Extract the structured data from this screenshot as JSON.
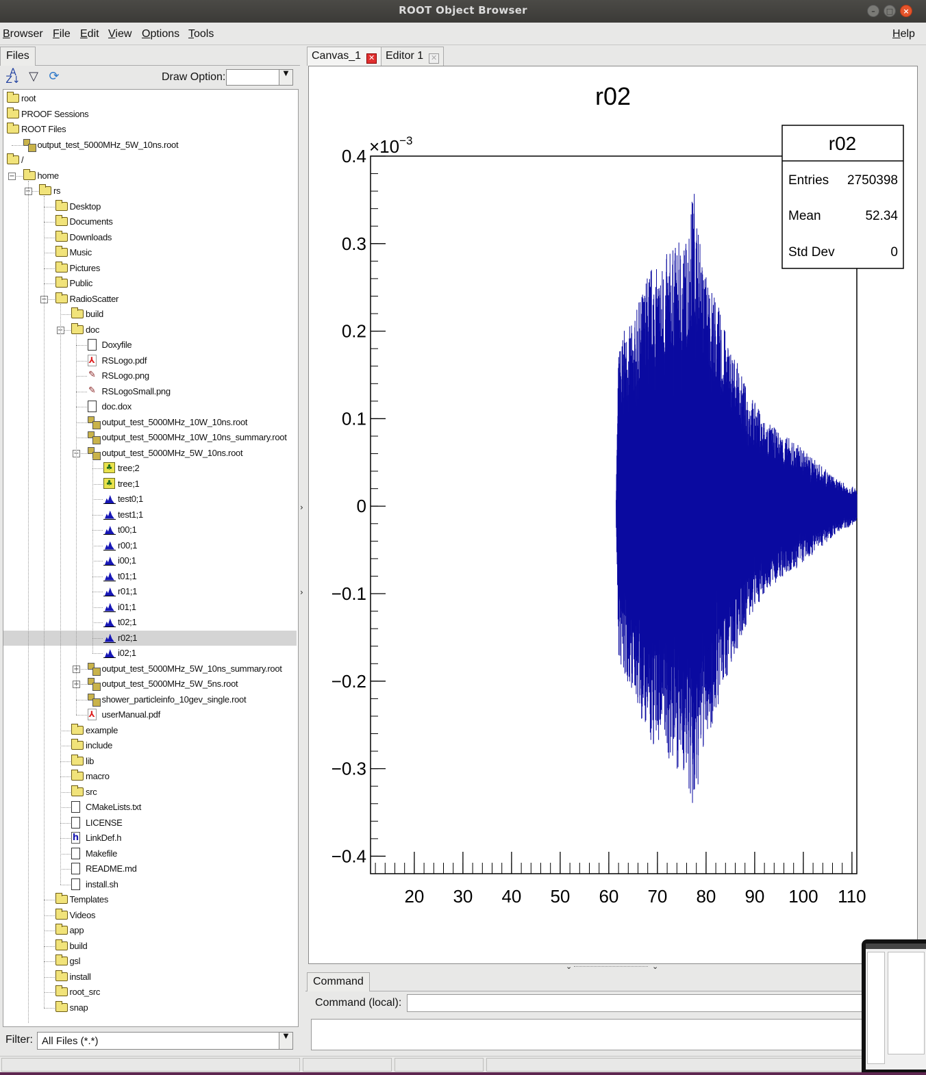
{
  "window": {
    "title": "ROOT Object Browser"
  },
  "menu": {
    "items": [
      "Browser",
      "File",
      "Edit",
      "View",
      "Options",
      "Tools"
    ],
    "help": "Help"
  },
  "left": {
    "tab": "Files",
    "draw_option_label": "Draw Option:",
    "draw_option_value": "",
    "filter_label": "Filter:",
    "filter_value": "All Files (*.*)"
  },
  "tree": [
    {
      "label": "root",
      "icon": "folder-icon",
      "depth": 0
    },
    {
      "label": "PROOF Sessions",
      "icon": "folder-icon",
      "depth": 0
    },
    {
      "label": "ROOT Files",
      "icon": "open-folder-icon",
      "depth": 0
    },
    {
      "label": "output_test_5000MHz_5W_10ns.root",
      "icon": "root-file-icon",
      "depth": 1
    },
    {
      "label": "/",
      "icon": "open-folder-icon",
      "depth": 0
    },
    {
      "label": "home",
      "icon": "open-folder-icon",
      "depth": 1,
      "exp": "−"
    },
    {
      "label": "rs",
      "icon": "open-folder-icon",
      "depth": 2,
      "exp": "−"
    },
    {
      "label": "Desktop",
      "icon": "folder-icon",
      "depth": 3
    },
    {
      "label": "Documents",
      "icon": "folder-icon",
      "depth": 3
    },
    {
      "label": "Downloads",
      "icon": "folder-icon",
      "depth": 3
    },
    {
      "label": "Music",
      "icon": "folder-icon",
      "depth": 3
    },
    {
      "label": "Pictures",
      "icon": "folder-icon",
      "depth": 3
    },
    {
      "label": "Public",
      "icon": "folder-icon",
      "depth": 3
    },
    {
      "label": "RadioScatter",
      "icon": "open-folder-icon",
      "depth": 3,
      "exp": "−"
    },
    {
      "label": "build",
      "icon": "folder-icon",
      "depth": 4
    },
    {
      "label": "doc",
      "icon": "open-folder-icon",
      "depth": 4,
      "exp": "−"
    },
    {
      "label": "Doxyfile",
      "icon": "file-icon",
      "depth": 5
    },
    {
      "label": "RSLogo.pdf",
      "icon": "pdf-icon",
      "depth": 5
    },
    {
      "label": "RSLogo.png",
      "icon": "image-icon",
      "depth": 5
    },
    {
      "label": "RSLogoSmall.png",
      "icon": "image-icon",
      "depth": 5
    },
    {
      "label": "doc.dox",
      "icon": "file-icon",
      "depth": 5
    },
    {
      "label": "output_test_5000MHz_10W_10ns.root",
      "icon": "root-file-icon",
      "depth": 5
    },
    {
      "label": "output_test_5000MHz_10W_10ns_summary.root",
      "icon": "root-file-icon",
      "depth": 5
    },
    {
      "label": "output_test_5000MHz_5W_10ns.root",
      "icon": "root-file-icon",
      "depth": 5,
      "exp": "−"
    },
    {
      "label": "tree;2",
      "icon": "tree-icon",
      "depth": 6
    },
    {
      "label": "tree;1",
      "icon": "tree-icon",
      "depth": 6
    },
    {
      "label": "test0;1",
      "icon": "histogram-icon",
      "depth": 6
    },
    {
      "label": "test1;1",
      "icon": "histogram-icon",
      "depth": 6
    },
    {
      "label": "t00;1",
      "icon": "histogram-icon",
      "depth": 6
    },
    {
      "label": "r00;1",
      "icon": "histogram-icon",
      "depth": 6
    },
    {
      "label": "i00;1",
      "icon": "histogram-icon",
      "depth": 6
    },
    {
      "label": "t01;1",
      "icon": "histogram-icon",
      "depth": 6
    },
    {
      "label": "r01;1",
      "icon": "histogram-icon",
      "depth": 6
    },
    {
      "label": "i01;1",
      "icon": "histogram-icon",
      "depth": 6
    },
    {
      "label": "t02;1",
      "icon": "histogram-icon",
      "depth": 6
    },
    {
      "label": "r02;1",
      "icon": "histogram-icon",
      "depth": 6,
      "selected": true
    },
    {
      "label": "i02;1",
      "icon": "histogram-icon",
      "depth": 6
    },
    {
      "label": "output_test_5000MHz_5W_10ns_summary.root",
      "icon": "root-file-icon",
      "depth": 5,
      "exp": "+"
    },
    {
      "label": "output_test_5000MHz_5W_5ns.root",
      "icon": "root-file-icon",
      "depth": 5,
      "exp": "+"
    },
    {
      "label": "shower_particleinfo_10gev_single.root",
      "icon": "root-file-icon",
      "depth": 5
    },
    {
      "label": "userManual.pdf",
      "icon": "pdf-icon",
      "depth": 5
    },
    {
      "label": "example",
      "icon": "folder-icon",
      "depth": 4
    },
    {
      "label": "include",
      "icon": "folder-icon",
      "depth": 4
    },
    {
      "label": "lib",
      "icon": "folder-icon",
      "depth": 4
    },
    {
      "label": "macro",
      "icon": "folder-icon",
      "depth": 4
    },
    {
      "label": "src",
      "icon": "folder-icon",
      "depth": 4
    },
    {
      "label": "CMakeLists.txt",
      "icon": "file-icon",
      "depth": 4
    },
    {
      "label": "LICENSE",
      "icon": "file-icon",
      "depth": 4
    },
    {
      "label": "LinkDef.h",
      "icon": "header-file-icon",
      "depth": 4
    },
    {
      "label": "Makefile",
      "icon": "file-icon",
      "depth": 4
    },
    {
      "label": "README.md",
      "icon": "file-icon",
      "depth": 4
    },
    {
      "label": "install.sh",
      "icon": "file-icon",
      "depth": 4
    },
    {
      "label": "Templates",
      "icon": "folder-icon",
      "depth": 3
    },
    {
      "label": "Videos",
      "icon": "folder-icon",
      "depth": 3
    },
    {
      "label": "app",
      "icon": "folder-icon",
      "depth": 3
    },
    {
      "label": "build",
      "icon": "folder-icon",
      "depth": 3
    },
    {
      "label": "gsl",
      "icon": "folder-icon",
      "depth": 3
    },
    {
      "label": "install",
      "icon": "folder-icon",
      "depth": 3
    },
    {
      "label": "root_src",
      "icon": "folder-icon",
      "depth": 3
    },
    {
      "label": "snap",
      "icon": "folder-icon",
      "depth": 3
    }
  ],
  "right": {
    "tabs": [
      {
        "label": "Canvas_1",
        "closable": "active"
      },
      {
        "label": "Editor 1",
        "closable": "inactive"
      }
    ],
    "command_tab": "Command",
    "command_label": "Command (local):",
    "command_value": ""
  },
  "chart_data": {
    "type": "line",
    "title": "r02",
    "exponent_label": "×10",
    "exponent_power": "−3",
    "xlim": [
      11,
      111
    ],
    "ylim": [
      -0.42,
      0.4
    ],
    "x_ticks": [
      20,
      30,
      40,
      50,
      60,
      70,
      80,
      90,
      100,
      110
    ],
    "x_tick_labels": [
      "20",
      "30",
      "40",
      "50",
      "60",
      "70",
      "80",
      "90",
      "100",
      "110"
    ],
    "y_ticks": [
      0.4,
      0.3,
      0.2,
      0.1,
      0,
      -0.1,
      -0.2,
      -0.3,
      -0.4
    ],
    "y_tick_labels": [
      "0.4",
      "0.3",
      "0.2",
      "0.1",
      "0",
      "−0.1",
      "−0.2",
      "−0.3",
      "−0.4"
    ],
    "series_color": "#0a0aa0",
    "signal_start": 61.5,
    "signal_end": 111,
    "envelope": [
      [
        61.5,
        0.02
      ],
      [
        62,
        0.18
      ],
      [
        63,
        0.2
      ],
      [
        65,
        0.21
      ],
      [
        67,
        0.25
      ],
      [
        68,
        0.27
      ],
      [
        69,
        0.28
      ],
      [
        70,
        0.27
      ],
      [
        72,
        0.29
      ],
      [
        74,
        0.3
      ],
      [
        76,
        0.31
      ],
      [
        77.5,
        0.37
      ],
      [
        79,
        0.29
      ],
      [
        80,
        0.27
      ],
      [
        82,
        0.24
      ],
      [
        84,
        0.2
      ],
      [
        86,
        0.17
      ],
      [
        88,
        0.14
      ],
      [
        90,
        0.12
      ],
      [
        92,
        0.1
      ],
      [
        95,
        0.085
      ],
      [
        98,
        0.075
      ],
      [
        101,
        0.06
      ],
      [
        104,
        0.045
      ],
      [
        107,
        0.03
      ],
      [
        111,
        0.02
      ]
    ],
    "stats": {
      "title": "r02",
      "rows": [
        {
          "label": "Entries",
          "value": "2750398"
        },
        {
          "label": "Mean",
          "value": "52.34"
        },
        {
          "label": "Std Dev",
          "value": "0"
        }
      ]
    }
  }
}
